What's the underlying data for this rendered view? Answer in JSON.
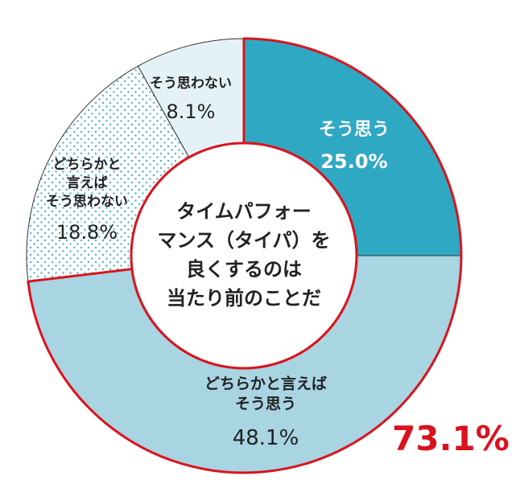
{
  "chart_data": {
    "type": "donut",
    "title": "タイムパフォー\nマンス（タイパ）を\n良くするのは\n当たり前のことだ",
    "categories": [
      "そう思う",
      "どちらかと言えば\nそう思う",
      "どちらかと\n言えば\nそう思わない",
      "そう思わない"
    ],
    "values": [
      25.0,
      48.1,
      18.8,
      8.1
    ],
    "value_labels": [
      "25.0%",
      "48.1%",
      "18.8%",
      "8.1%"
    ],
    "colors": [
      "#2fa8c4",
      "#a9d4e2",
      "dotted",
      "#e4f2f7"
    ],
    "highlight": {
      "value": 73.1,
      "label": "73.1%"
    },
    "highlight_color": "#d9141e"
  }
}
